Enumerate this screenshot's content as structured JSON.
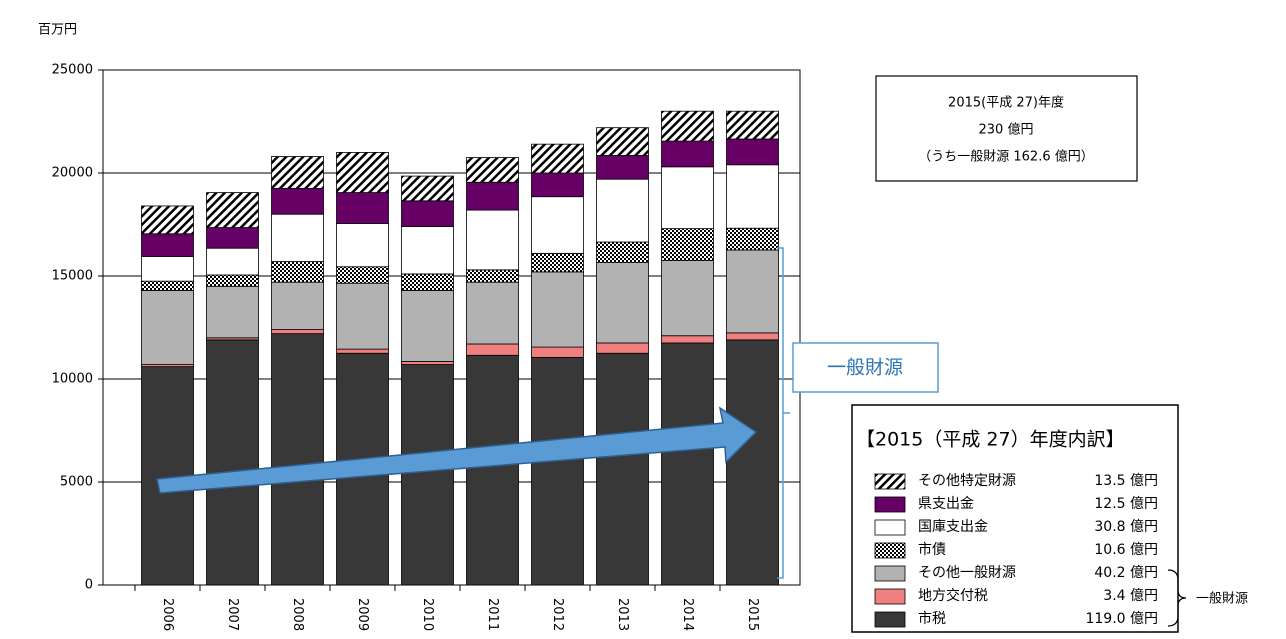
{
  "chart_data": {
    "type": "stacked-bar",
    "y_unit": "百万円",
    "categories": [
      "2006",
      "2007",
      "2008",
      "2009",
      "2010",
      "2011",
      "2012",
      "2013",
      "2014",
      "2015"
    ],
    "series": [
      {
        "name": "市税",
        "color": "#383838",
        "legend_label": "119.0 億円",
        "values": [
          10600,
          11900,
          12200,
          11250,
          10700,
          11150,
          11050,
          11250,
          11750,
          11900
        ]
      },
      {
        "name": "地方交付税",
        "color": "#f08080",
        "legend_label": "3.4 億円",
        "values": [
          100,
          100,
          200,
          200,
          150,
          550,
          500,
          500,
          350,
          340
        ]
      },
      {
        "name": "その他一般財源",
        "color": "#b2b2b2",
        "legend_label": "40.2 億円",
        "values": [
          3600,
          2500,
          2300,
          3200,
          3450,
          3000,
          3650,
          3900,
          3650,
          4020
        ]
      },
      {
        "name": "市債",
        "color": "#000000",
        "pattern": "crosshatch",
        "legend_label": "10.6 億円",
        "values": [
          450,
          550,
          1000,
          800,
          800,
          600,
          900,
          1000,
          1550,
          1060
        ]
      },
      {
        "name": "国庫支出金",
        "color": "#ffffff",
        "legend_label": "30.8 億円",
        "values": [
          1200,
          1300,
          2300,
          2100,
          2300,
          2900,
          2750,
          3050,
          3000,
          3080
        ]
      },
      {
        "name": "県支出金",
        "color": "#660066",
        "legend_label": "12.5 億円",
        "values": [
          1100,
          1000,
          1250,
          1500,
          1250,
          1350,
          1150,
          1150,
          1250,
          1250
        ]
      },
      {
        "name": "その他特定財源",
        "color": "#000000",
        "pattern": "diagonal",
        "legend_label": "13.5 億円",
        "values": [
          1350,
          1700,
          1550,
          1950,
          1200,
          1200,
          1400,
          1350,
          1450,
          1350
        ]
      }
    ],
    "ylim": [
      0,
      25000
    ],
    "yticks": [
      0,
      5000,
      10000,
      15000,
      20000,
      25000
    ],
    "grid": true,
    "summary": [
      "2015(平成 27)年度",
      "230 億円",
      "（うち一般財源 162.6 億円）"
    ],
    "callout": "一般財源",
    "legend_title": "【2015（平成 27）年度内訳】",
    "legend_brace_label": "一般財源"
  }
}
